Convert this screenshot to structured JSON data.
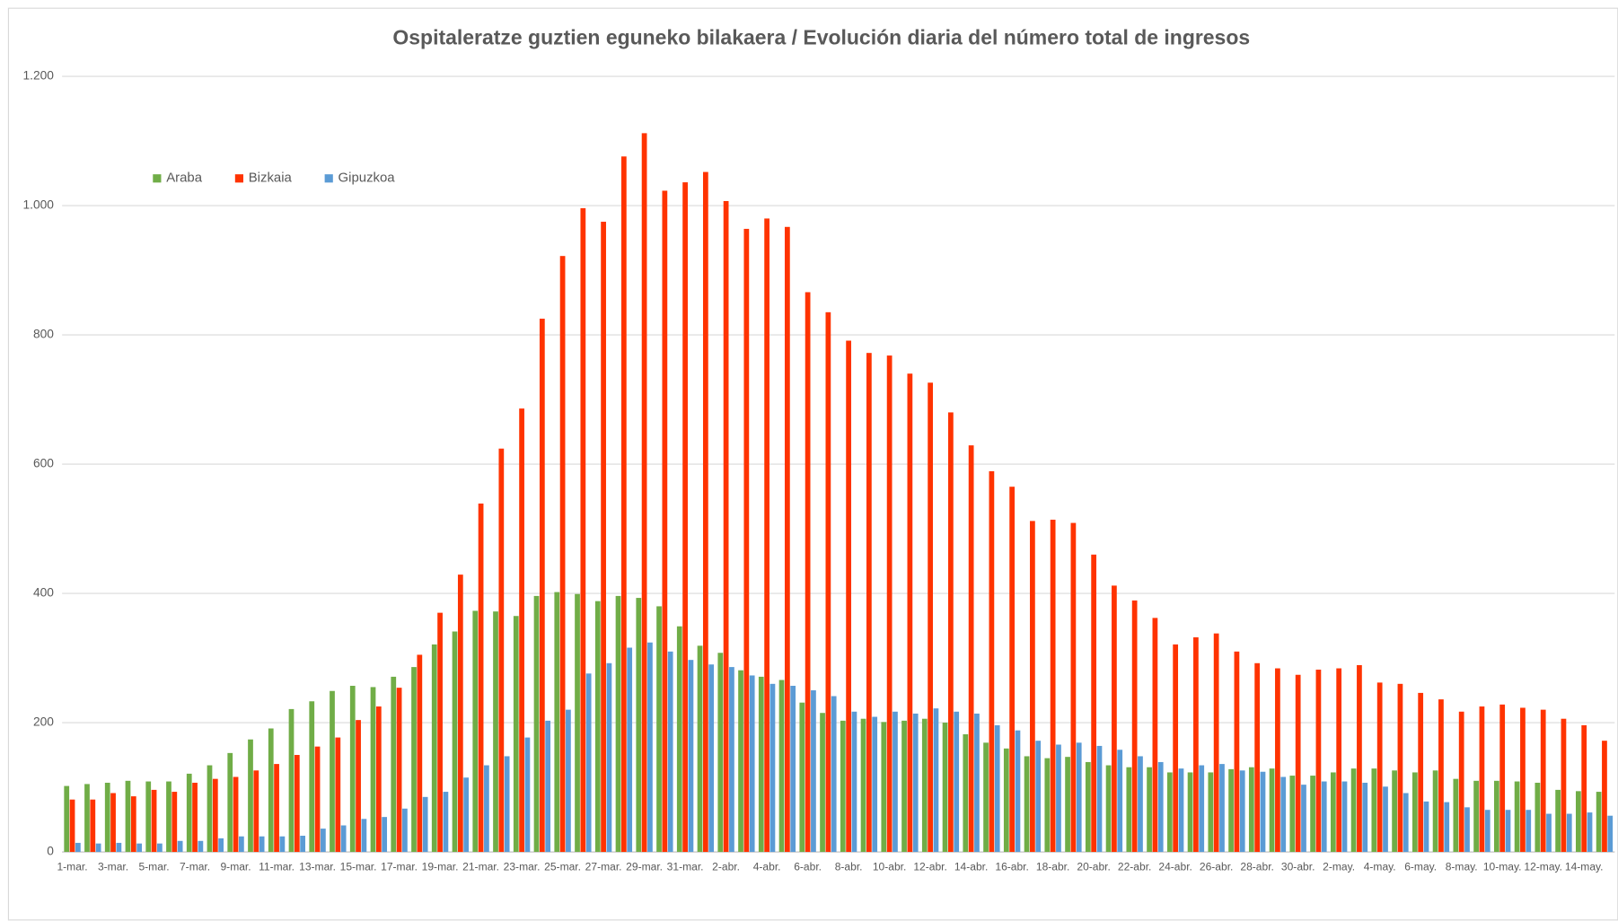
{
  "chart_data": {
    "type": "bar",
    "title": "Ospitaleratze guztien eguneko bilakaera  / Evolución diaria del número total de ingresos",
    "categories": [
      "1-mar.",
      null,
      "3-mar.",
      null,
      "5-mar.",
      null,
      "7-mar.",
      null,
      "9-mar.",
      null,
      "11-mar.",
      null,
      "13-mar.",
      null,
      "15-mar.",
      null,
      "17-mar.",
      null,
      "19-mar.",
      null,
      "21-mar.",
      null,
      "23-mar.",
      null,
      "25-mar.",
      null,
      "27-mar.",
      null,
      "29-mar.",
      null,
      "31-mar.",
      null,
      "2-abr.",
      null,
      "4-abr.",
      null,
      "6-abr.",
      null,
      "8-abr.",
      null,
      "10-abr.",
      null,
      "12-abr.",
      null,
      "14-abr.",
      null,
      "16-abr.",
      null,
      "18-abr.",
      null,
      "20-abr.",
      null,
      "22-abr.",
      null,
      "24-abr.",
      null,
      "26-abr.",
      null,
      "28-abr.",
      null,
      "30-abr.",
      null,
      "2-may.",
      null,
      "4-may.",
      null,
      "6-may.",
      null,
      "8-may.",
      null,
      "10-may.",
      null,
      "12-may.",
      null,
      "14-may.",
      null
    ],
    "series": [
      {
        "name": "Araba",
        "color": "#70ad47",
        "values": [
          102,
          105,
          107,
          110,
          109,
          109,
          121,
          134,
          153,
          174,
          191,
          221,
          233,
          249,
          257,
          255,
          271,
          286,
          321,
          341,
          373,
          372,
          365,
          396,
          402,
          399,
          388,
          396,
          393,
          380,
          349,
          319,
          308,
          281,
          271,
          266,
          231,
          215,
          203,
          206,
          201,
          203,
          206,
          200,
          182,
          169,
          160,
          148,
          145,
          147,
          139,
          134,
          131,
          131,
          123,
          123,
          123,
          128,
          131,
          129,
          118,
          118,
          123,
          129,
          129,
          126,
          123,
          126,
          113,
          110,
          110,
          109,
          107,
          96,
          94,
          93
        ]
      },
      {
        "name": "Bizkaia",
        "color": "#ff3300",
        "values": [
          81,
          81,
          91,
          86,
          96,
          93,
          107,
          113,
          116,
          126,
          136,
          150,
          163,
          177,
          204,
          225,
          254,
          305,
          370,
          429,
          539,
          624,
          686,
          825,
          922,
          996,
          975,
          1076,
          1112,
          1023,
          1036,
          1052,
          1007,
          964,
          980,
          967,
          866,
          835,
          791,
          772,
          768,
          740,
          726,
          680,
          629,
          589,
          565,
          512,
          514,
          509,
          460,
          412,
          389,
          362,
          321,
          332,
          338,
          310,
          292,
          284,
          274,
          282,
          284,
          289,
          262,
          260,
          246,
          236,
          217,
          225,
          228,
          223,
          220,
          206,
          196,
          172
        ]
      },
      {
        "name": "Gipuzkoa",
        "color": "#5b9bd5",
        "values": [
          14,
          13,
          14,
          13,
          13,
          17,
          17,
          21,
          24,
          24,
          24,
          25,
          36,
          41,
          51,
          54,
          67,
          85,
          93,
          115,
          134,
          148,
          177,
          203,
          220,
          276,
          292,
          316,
          324,
          310,
          297,
          290,
          286,
          273,
          260,
          257,
          250,
          241,
          217,
          209,
          217,
          214,
          222,
          217,
          214,
          196,
          188,
          172,
          166,
          169,
          164,
          158,
          148,
          139,
          129,
          134,
          136,
          126,
          124,
          116,
          104,
          109,
          109,
          107,
          101,
          91,
          78,
          77,
          69,
          65,
          65,
          65,
          59,
          59,
          61,
          56
        ]
      }
    ],
    "ylim": [
      0,
      1200
    ],
    "yticks": [
      0,
      200,
      400,
      600,
      800,
      {
        "value": 1000,
        "label": "1.000"
      },
      {
        "value": 1200,
        "label": "1.200"
      }
    ],
    "grid": true,
    "legend": "top-left"
  }
}
